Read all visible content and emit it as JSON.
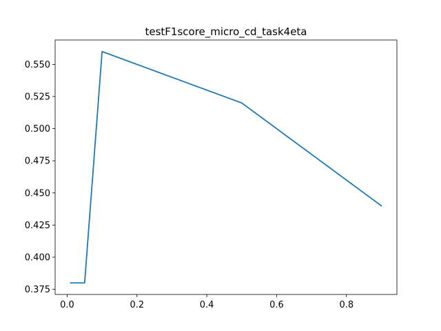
{
  "chart_data": {
    "type": "line",
    "title": "testF1score_micro_cd_task4eta",
    "xlabel": "",
    "ylabel": "",
    "xlim": [
      -0.0345,
      0.9445
    ],
    "ylim": [
      0.371,
      0.569
    ],
    "grid": false,
    "x_ticks": [
      0.0,
      0.2,
      0.4,
      0.6,
      0.8
    ],
    "x_tick_labels": [
      "0.0",
      "0.2",
      "0.4",
      "0.6",
      "0.8"
    ],
    "y_ticks": [
      0.375,
      0.4,
      0.425,
      0.45,
      0.475,
      0.5,
      0.525,
      0.55
    ],
    "y_tick_labels": [
      "0.375",
      "0.400",
      "0.425",
      "0.450",
      "0.475",
      "0.500",
      "0.525",
      "0.550"
    ],
    "series": [
      {
        "color": "#1f77b4",
        "x": [
          0.01,
          0.05,
          0.1,
          0.5,
          0.9
        ],
        "y": [
          0.38,
          0.38,
          0.56,
          0.52,
          0.44
        ]
      }
    ]
  }
}
